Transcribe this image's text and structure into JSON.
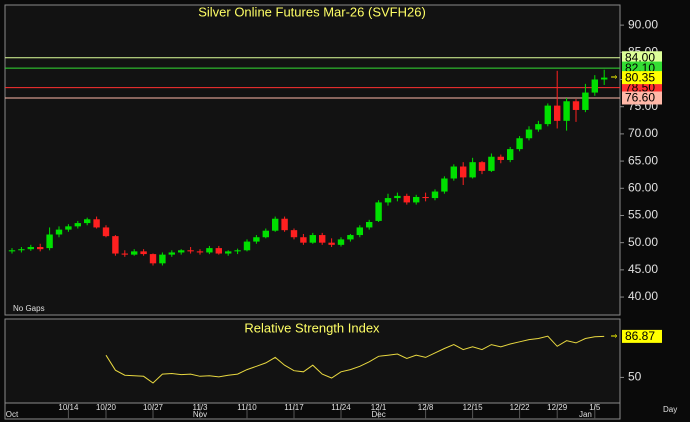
{
  "chart_data": [
    {
      "type": "candlestick",
      "title": "Silver Online Futures Mar-26 (SVFH26)",
      "note": "No Gaps",
      "period_label": "Day",
      "categories": [
        null,
        null,
        null,
        null,
        null,
        null,
        "10/14",
        null,
        null,
        null,
        "10/20",
        null,
        null,
        null,
        null,
        "10/27",
        null,
        null,
        null,
        null,
        "11/3",
        null,
        null,
        null,
        null,
        "11/10",
        null,
        null,
        null,
        null,
        "11/17",
        null,
        null,
        null,
        null,
        "11/24",
        null,
        null,
        null,
        "12/1",
        null,
        null,
        null,
        null,
        "12/8",
        null,
        null,
        null,
        null,
        "12/15",
        null,
        null,
        null,
        null,
        "12/22",
        null,
        null,
        null,
        "12/29",
        null,
        null,
        null,
        "1/5",
        null
      ],
      "months": [
        "Oct",
        null,
        null,
        null,
        null,
        null,
        null,
        null,
        null,
        null,
        null,
        null,
        null,
        null,
        null,
        null,
        null,
        null,
        null,
        null,
        "Nov",
        null,
        null,
        null,
        null,
        null,
        null,
        null,
        null,
        null,
        null,
        null,
        null,
        null,
        null,
        null,
        null,
        null,
        null,
        "Dec",
        null,
        null,
        null,
        null,
        null,
        null,
        null,
        null,
        null,
        null,
        null,
        null,
        null,
        null,
        null,
        null,
        null,
        null,
        null,
        null,
        null,
        "Jan",
        null,
        null
      ],
      "open": [
        48.4,
        48.6,
        48.8,
        49.2,
        49.0,
        51.5,
        52.4,
        53.0,
        53.6,
        54.3,
        52.8,
        51.2,
        48.0,
        47.8,
        48.4,
        47.9,
        46.2,
        47.8,
        48.2,
        48.6,
        48.4,
        48.2,
        49.0,
        48.0,
        48.4,
        48.6,
        50.2,
        51.0,
        52.2,
        54.4,
        52.3,
        51.0,
        50.0,
        51.4,
        50.0,
        49.6,
        50.6,
        51.4,
        52.8,
        54.0,
        57.4,
        58.2,
        58.6,
        57.4,
        58.4,
        58.2,
        59.4,
        61.8,
        64.0,
        62.0,
        64.8,
        63.2,
        65.8,
        65.2,
        67.2,
        69.2,
        70.8,
        71.8,
        75.2,
        72.4,
        76.0,
        74.4,
        77.6,
        80.0
      ],
      "high": [
        49.0,
        49.2,
        49.6,
        49.8,
        52.8,
        53.0,
        53.4,
        54.0,
        54.6,
        54.8,
        53.2,
        51.4,
        48.6,
        48.8,
        48.8,
        48.0,
        48.2,
        48.6,
        48.8,
        49.2,
        48.8,
        49.4,
        49.4,
        48.6,
        48.9,
        50.6,
        51.4,
        52.6,
        54.8,
        54.8,
        52.6,
        51.6,
        51.8,
        51.8,
        50.8,
        51.0,
        51.6,
        53.2,
        54.2,
        57.8,
        59.0,
        59.2,
        59.0,
        58.8,
        59.2,
        59.8,
        62.2,
        64.4,
        64.8,
        65.6,
        65.0,
        66.4,
        66.2,
        67.6,
        69.6,
        71.4,
        72.4,
        75.6,
        81.6,
        76.6,
        76.4,
        79.2,
        80.8,
        81.8
      ],
      "low": [
        48.0,
        48.2,
        48.5,
        48.4,
        48.6,
        51.0,
        52.0,
        52.6,
        53.2,
        52.6,
        51.0,
        47.6,
        47.4,
        47.6,
        47.6,
        45.8,
        45.8,
        47.4,
        47.8,
        48.0,
        47.8,
        47.9,
        47.8,
        47.6,
        47.9,
        48.4,
        49.8,
        50.8,
        52.0,
        52.0,
        50.6,
        49.6,
        49.8,
        49.6,
        49.2,
        49.3,
        50.2,
        51.0,
        52.4,
        53.8,
        56.8,
        57.6,
        57.0,
        57.0,
        57.6,
        57.8,
        59.0,
        61.4,
        60.6,
        61.8,
        62.6,
        63.0,
        64.6,
        64.8,
        66.8,
        68.8,
        70.4,
        71.4,
        71.0,
        70.6,
        72.2,
        74.0,
        77.0,
        79.0
      ],
      "close": [
        48.6,
        48.8,
        49.2,
        48.8,
        51.5,
        52.4,
        53.0,
        53.6,
        54.3,
        52.8,
        51.2,
        48.0,
        47.8,
        48.4,
        47.9,
        46.2,
        47.8,
        48.2,
        48.6,
        48.4,
        48.2,
        49.0,
        48.0,
        48.4,
        48.6,
        50.2,
        51.0,
        52.2,
        54.4,
        52.3,
        51.0,
        50.0,
        51.4,
        50.0,
        49.6,
        50.6,
        51.4,
        52.8,
        53.8,
        57.4,
        58.2,
        58.6,
        57.4,
        58.4,
        58.2,
        59.4,
        61.8,
        64.0,
        62.0,
        64.8,
        63.2,
        65.8,
        65.2,
        67.2,
        69.2,
        70.8,
        71.8,
        75.2,
        72.4,
        76.0,
        74.4,
        77.6,
        80.0,
        80.35
      ],
      "last_value_label": "80.35",
      "last_value_color": "#ffff00",
      "up_color": "#00e000",
      "down_color": "#ff2020",
      "ylim": [
        36.7,
        93.7
      ],
      "yticks": [
        {
          "value": 40,
          "label": "40.00"
        },
        {
          "value": 45,
          "label": "45.00"
        },
        {
          "value": 50,
          "label": "50.00"
        },
        {
          "value": 55,
          "label": "55.00"
        },
        {
          "value": 60,
          "label": "60.00"
        },
        {
          "value": 65,
          "label": "65.00"
        },
        {
          "value": 70,
          "label": "70.00"
        },
        {
          "value": 75,
          "label": "75.00"
        },
        {
          "value": 80,
          "label": "80.00"
        },
        {
          "value": 85,
          "label": "85.00"
        },
        {
          "value": 90,
          "label": "90.00"
        }
      ],
      "levels": [
        {
          "value": 84,
          "label": "84.00",
          "color": "#ddff99"
        },
        {
          "value": 82.1,
          "label": "82.10",
          "color": "#33dd33"
        },
        {
          "value": 78.5,
          "label": "78.50",
          "color": "#ff3030"
        },
        {
          "value": 76.6,
          "label": "76.60",
          "color": "#ffb8a8"
        }
      ]
    },
    {
      "type": "line",
      "title": "Relative Strength Index",
      "color": "#e8d840",
      "values": [
        null,
        null,
        null,
        null,
        null,
        null,
        null,
        null,
        null,
        null,
        70,
        56.5,
        52,
        51.5,
        51,
        45,
        53,
        53.5,
        52.5,
        53,
        51,
        51.5,
        50.5,
        52,
        53,
        57,
        60,
        63,
        68,
        61,
        56,
        55,
        61,
        53,
        49.5,
        55,
        57,
        60,
        64,
        69,
        70,
        71,
        67,
        70,
        68,
        72,
        76,
        79.5,
        75,
        77.5,
        75,
        79.5,
        77.5,
        80,
        82,
        84,
        85,
        87,
        78,
        83,
        81,
        85,
        86.5,
        86.87
      ],
      "last_value_color": "#ffff00",
      "ylim": [
        27,
        102.5
      ],
      "yticks": [
        50
      ]
    }
  ]
}
